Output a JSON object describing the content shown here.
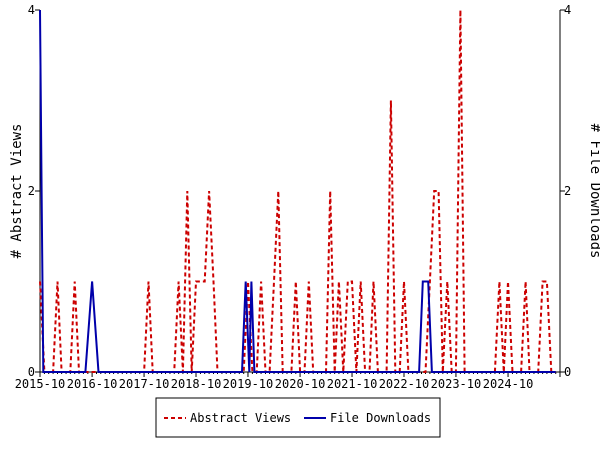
{
  "chart_data": {
    "type": "line",
    "left_axis_label": "# Abstract Views",
    "right_axis_label": "# File Downloads",
    "x_tick_labels": [
      "2015-10",
      "2016-10",
      "2017-10",
      "2018-10",
      "2019-10",
      "2020-10",
      "2021-10",
      "2022-10",
      "2023-10",
      "2024-10"
    ],
    "x_start": "2015-10",
    "x_end": "2025-10",
    "ylim": [
      0,
      4
    ],
    "y_ticks": [
      0,
      2,
      4
    ],
    "grid": false,
    "legend_position": "bottom",
    "series": [
      {
        "name": "Abstract Views",
        "color": "#cc0000",
        "style": "dashed",
        "axis": "left",
        "points": [
          [
            "2015-10-01",
            1
          ],
          [
            "2015-11-01",
            0
          ],
          [
            "2015-12-01",
            0
          ],
          [
            "2016-01-01",
            0
          ],
          [
            "2016-02-01",
            1
          ],
          [
            "2016-03-01",
            0
          ],
          [
            "2016-04-01",
            0
          ],
          [
            "2016-05-01",
            0
          ],
          [
            "2016-06-01",
            1
          ],
          [
            "2016-07-01",
            0
          ],
          [
            "2016-08-01",
            0
          ],
          [
            "2016-09-01",
            0
          ],
          [
            "2016-10-01",
            0
          ],
          [
            "2016-11-01",
            0
          ],
          [
            "2016-12-01",
            0
          ],
          [
            "2017-01-01",
            0
          ],
          [
            "2017-02-01",
            0
          ],
          [
            "2017-03-01",
            0
          ],
          [
            "2017-04-01",
            0
          ],
          [
            "2017-05-01",
            0
          ],
          [
            "2017-06-01",
            0
          ],
          [
            "2017-07-01",
            0
          ],
          [
            "2017-08-01",
            0
          ],
          [
            "2017-09-01",
            0
          ],
          [
            "2017-10-01",
            0
          ],
          [
            "2017-11-01",
            1
          ],
          [
            "2017-12-01",
            0
          ],
          [
            "2018-01-01",
            0
          ],
          [
            "2018-02-01",
            0
          ],
          [
            "2018-03-01",
            0
          ],
          [
            "2018-04-01",
            0
          ],
          [
            "2018-05-01",
            0
          ],
          [
            "2018-06-01",
            1
          ],
          [
            "2018-07-01",
            0
          ],
          [
            "2018-08-01",
            2
          ],
          [
            "2018-09-01",
            0
          ],
          [
            "2018-10-01",
            1
          ],
          [
            "2018-11-01",
            1
          ],
          [
            "2018-12-01",
            1
          ],
          [
            "2019-01-01",
            2
          ],
          [
            "2019-02-01",
            1
          ],
          [
            "2019-03-01",
            0
          ],
          [
            "2019-04-01",
            0
          ],
          [
            "2019-05-01",
            0
          ],
          [
            "2019-06-01",
            0
          ],
          [
            "2019-07-01",
            0
          ],
          [
            "2019-08-01",
            0
          ],
          [
            "2019-09-01",
            0
          ],
          [
            "2019-10-01",
            1
          ],
          [
            "2019-11-01",
            0
          ],
          [
            "2019-12-01",
            0
          ],
          [
            "2020-01-01",
            1
          ],
          [
            "2020-02-01",
            0
          ],
          [
            "2020-03-01",
            0
          ],
          [
            "2020-04-01",
            1
          ],
          [
            "2020-05-01",
            2
          ],
          [
            "2020-06-01",
            0
          ],
          [
            "2020-07-01",
            0
          ],
          [
            "2020-08-01",
            0
          ],
          [
            "2020-09-01",
            1
          ],
          [
            "2020-10-01",
            0
          ],
          [
            "2020-11-01",
            0
          ],
          [
            "2020-12-01",
            1
          ],
          [
            "2021-01-01",
            0
          ],
          [
            "2021-02-01",
            0
          ],
          [
            "2021-03-01",
            0
          ],
          [
            "2021-04-01",
            0
          ],
          [
            "2021-05-01",
            2
          ],
          [
            "2021-06-01",
            0
          ],
          [
            "2021-07-01",
            1
          ],
          [
            "2021-08-01",
            0
          ],
          [
            "2021-09-01",
            1
          ],
          [
            "2021-10-01",
            1
          ],
          [
            "2021-11-01",
            0
          ],
          [
            "2021-12-01",
            1
          ],
          [
            "2022-01-01",
            0
          ],
          [
            "2022-02-01",
            0
          ],
          [
            "2022-03-01",
            1
          ],
          [
            "2022-04-01",
            0
          ],
          [
            "2022-05-01",
            0
          ],
          [
            "2022-06-01",
            0
          ],
          [
            "2022-07-01",
            3
          ],
          [
            "2022-08-01",
            0
          ],
          [
            "2022-09-01",
            0
          ],
          [
            "2022-10-01",
            1
          ],
          [
            "2022-11-01",
            0
          ],
          [
            "2022-12-01",
            0
          ],
          [
            "2023-01-01",
            0
          ],
          [
            "2023-02-01",
            0
          ],
          [
            "2023-03-01",
            0
          ],
          [
            "2023-04-01",
            1
          ],
          [
            "2023-05-01",
            2
          ],
          [
            "2023-06-01",
            2
          ],
          [
            "2023-07-01",
            0
          ],
          [
            "2023-08-01",
            1
          ],
          [
            "2023-09-01",
            0
          ],
          [
            "2023-10-01",
            0
          ],
          [
            "2023-11-01",
            4
          ],
          [
            "2023-12-01",
            0
          ],
          [
            "2024-01-01",
            0
          ],
          [
            "2024-02-01",
            0
          ],
          [
            "2024-03-01",
            0
          ],
          [
            "2024-04-01",
            0
          ],
          [
            "2024-05-01",
            0
          ],
          [
            "2024-06-01",
            0
          ],
          [
            "2024-07-01",
            0
          ],
          [
            "2024-08-01",
            1
          ],
          [
            "2024-09-01",
            0
          ],
          [
            "2024-10-01",
            1
          ],
          [
            "2024-11-01",
            0
          ],
          [
            "2024-12-01",
            0
          ],
          [
            "2025-01-01",
            0
          ],
          [
            "2025-02-01",
            1
          ],
          [
            "2025-03-01",
            0
          ],
          [
            "2025-04-01",
            0
          ],
          [
            "2025-05-01",
            0
          ],
          [
            "2025-06-01",
            1
          ],
          [
            "2025-07-01",
            1
          ],
          [
            "2025-08-01",
            0
          ],
          [
            "2025-09-01",
            0
          ]
        ]
      },
      {
        "name": "File Downloads",
        "color": "#0000aa",
        "style": "solid",
        "axis": "right",
        "points": [
          [
            "2015-10-01",
            4
          ],
          [
            "2015-10-12",
            2
          ],
          [
            "2015-10-24",
            0
          ],
          [
            "2015-11-01",
            0
          ],
          [
            "2016-08-15",
            0
          ],
          [
            "2016-10-01",
            1
          ],
          [
            "2016-11-15",
            0
          ],
          [
            "2019-08-20",
            0
          ],
          [
            "2019-09-15",
            1
          ],
          [
            "2019-10-10",
            0
          ],
          [
            "2019-10-25",
            1
          ],
          [
            "2019-11-15",
            0
          ],
          [
            "2023-01-15",
            0
          ],
          [
            "2023-02-10",
            1
          ],
          [
            "2023-03-20",
            1
          ],
          [
            "2023-04-15",
            0
          ],
          [
            "2025-09-01",
            0
          ]
        ]
      }
    ]
  }
}
